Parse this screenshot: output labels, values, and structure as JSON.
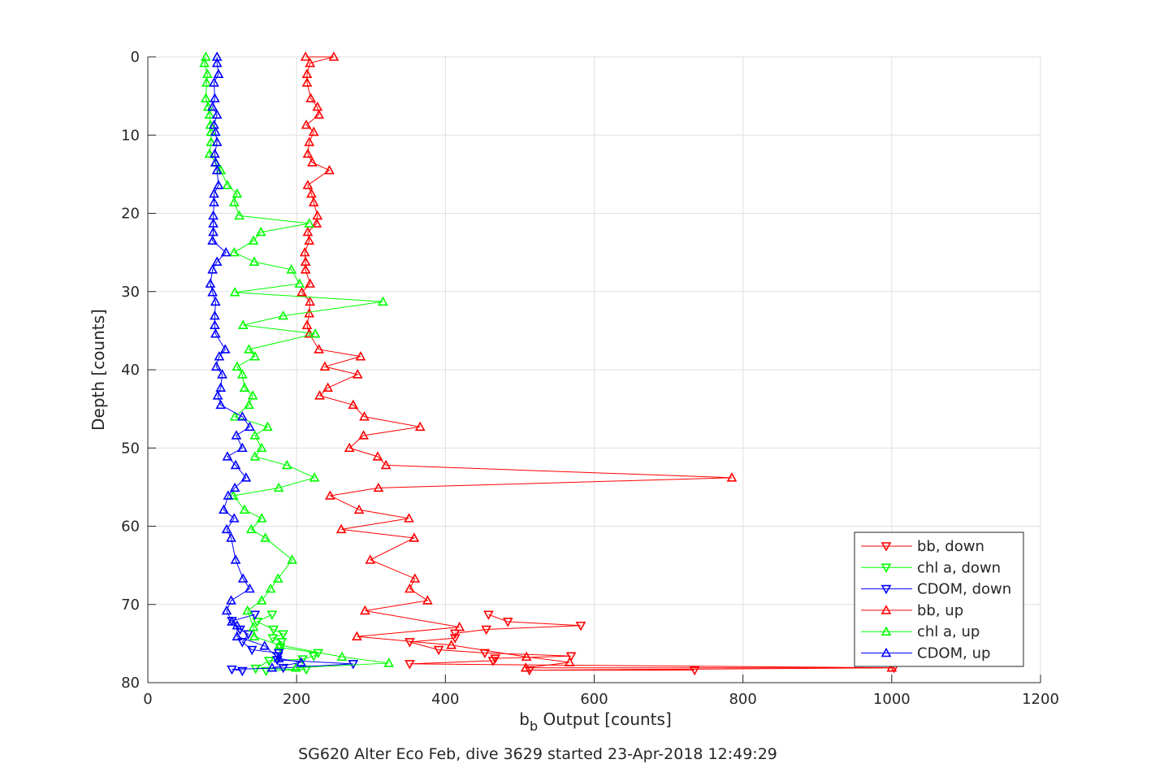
{
  "chart_data": {
    "type": "line",
    "title": "",
    "xlabel_main": "b",
    "xlabel_sub": "b",
    "xlabel_rest": " Output [counts]",
    "ylabel": "Depth [counts]",
    "caption": "SG620 Alter Eco Feb, dive 3629 started 23-Apr-2018 12:49:29",
    "xlim": [
      0,
      1200
    ],
    "ylim": [
      0,
      80
    ],
    "y_reversed": true,
    "grid": true,
    "xticks": [
      "0",
      "200",
      "400",
      "600",
      "800",
      "1000",
      "1200"
    ],
    "xtick_values": [
      0,
      200,
      400,
      600,
      800,
      1000,
      1200
    ],
    "yticks": [
      "0",
      "10",
      "20",
      "30",
      "40",
      "50",
      "60",
      "70",
      "80"
    ],
    "ytick_values": [
      0,
      10,
      20,
      30,
      40,
      50,
      60,
      70,
      80
    ],
    "legend_placement": "bottom-right",
    "series": [
      {
        "name": "bb, down",
        "color": "#ff0000",
        "marker": "down",
        "x": [
          458,
          484,
          582,
          455,
          413,
          413,
          352,
          391,
          453,
          569,
          467,
          464,
          352,
          1003,
          513,
          735
        ],
        "y": [
          71.3,
          72.2,
          72.7,
          73.2,
          73.7,
          74.3,
          74.8,
          75.8,
          76.2,
          76.6,
          76.9,
          77.2,
          77.6,
          78.1,
          78.4,
          78.4
        ]
      },
      {
        "name": "chl a, down",
        "color": "#00ff00",
        "marker": "down",
        "x": [
          167,
          147,
          169,
          182,
          168,
          180,
          178,
          229,
          223,
          208,
          163,
          145,
          213,
          159
        ],
        "y": [
          71.3,
          72.2,
          73.2,
          73.8,
          74.3,
          74.8,
          75.5,
          76.2,
          76.6,
          77.0,
          77.2,
          78.2,
          78.3,
          78.5
        ]
      },
      {
        "name": "CDOM, down",
        "color": "#0000ff",
        "marker": "down",
        "x": [
          144,
          113,
          124,
          135,
          127,
          140,
          176,
          175,
          174,
          276,
          182,
          113,
          127
        ],
        "y": [
          71.3,
          72.1,
          73.2,
          73.8,
          74.8,
          75.8,
          76.2,
          76.6,
          77.1,
          77.6,
          78.1,
          78.3,
          78.5
        ]
      },
      {
        "name": "bb, up",
        "color": "#ff0000",
        "marker": "up",
        "x": [
          212,
          250,
          218,
          214,
          214,
          219,
          228,
          230,
          213,
          223,
          217,
          215,
          221,
          244,
          215,
          220,
          223,
          228,
          227,
          215,
          217,
          211,
          212,
          212,
          218,
          207,
          218,
          217,
          214,
          217,
          230,
          286,
          238,
          282,
          242,
          231,
          276,
          291,
          366,
          290,
          271,
          309,
          320,
          785,
          310,
          245,
          284,
          351,
          260,
          358,
          299,
          359,
          352,
          376,
          292,
          419,
          281,
          408,
          509,
          567,
          508,
          1000
        ],
        "y": [
          0,
          0,
          0.8,
          2.2,
          3.3,
          5.3,
          6.4,
          7.4,
          8.7,
          9.6,
          10.9,
          12.4,
          13.5,
          14.5,
          16.4,
          17.5,
          18.6,
          20.3,
          21.3,
          22.4,
          23.5,
          25,
          26.2,
          27.2,
          29,
          30.1,
          31.3,
          32.8,
          34.3,
          35.4,
          37.4,
          38.3,
          39.6,
          40.6,
          42.3,
          43.3,
          44.5,
          46,
          47.3,
          48.4,
          50,
          51.1,
          52.2,
          53.8,
          55.1,
          56.1,
          57.9,
          59,
          60.4,
          61.5,
          64.3,
          66.7,
          68,
          69.5,
          70.8,
          72.9,
          74.1,
          75.2,
          76.7,
          77.4,
          78.1,
          78.1
        ]
      },
      {
        "name": "chl a, up",
        "color": "#00ff00",
        "marker": "up",
        "x": [
          78,
          76,
          80,
          79,
          78,
          81,
          83,
          84,
          85,
          85,
          83,
          91,
          98,
          107,
          120,
          116,
          123,
          217,
          152,
          142,
          116,
          143,
          193,
          204,
          117,
          316,
          182,
          128,
          225,
          136,
          144,
          120,
          127,
          130,
          141,
          136,
          117,
          161,
          144,
          153,
          144,
          187,
          224,
          176,
          115,
          130,
          153,
          139,
          158,
          194,
          175,
          165,
          153,
          134,
          142,
          143,
          177,
          261,
          324,
          199
        ],
        "y": [
          0,
          0.8,
          2.2,
          3.3,
          5.3,
          6.4,
          7.4,
          8.7,
          9.6,
          10.9,
          12.4,
          13.5,
          14.5,
          16.4,
          17.5,
          18.6,
          20.3,
          21.3,
          22.4,
          23.5,
          25,
          26.2,
          27.2,
          29,
          30.1,
          31.3,
          33.1,
          34.3,
          35.4,
          37.4,
          38.3,
          39.6,
          40.6,
          42.3,
          43.3,
          44.5,
          46,
          47.3,
          48.4,
          50,
          51.1,
          52.2,
          53.8,
          55.1,
          56.1,
          57.9,
          59,
          60.4,
          61.5,
          64.3,
          66.7,
          68,
          69.5,
          70.8,
          72.9,
          74.1,
          75.2,
          76.7,
          77.5,
          78.1
        ]
      },
      {
        "name": "CDOM, up",
        "color": "#0000ff",
        "marker": "up",
        "x": [
          93,
          93,
          95,
          89,
          90,
          87,
          93,
          89,
          91,
          93,
          90,
          91,
          93,
          95,
          89,
          89,
          88,
          88,
          88,
          87,
          105,
          93,
          87,
          84,
          87,
          91,
          90,
          90,
          91,
          104,
          96,
          92,
          100,
          98,
          94,
          98,
          127,
          137,
          119,
          127,
          107,
          118,
          132,
          117,
          108,
          102,
          116,
          106,
          112,
          118,
          128,
          137,
          112,
          106,
          113,
          120,
          120,
          157,
          176,
          206,
          167
        ],
        "y": [
          0,
          0.8,
          2.2,
          3.3,
          5.3,
          6.4,
          7.4,
          8.7,
          9.6,
          10.9,
          12.4,
          13.5,
          14.5,
          16.4,
          17.5,
          18.6,
          20.3,
          21.3,
          22.4,
          23.5,
          25,
          26.2,
          27.2,
          29,
          30.1,
          31.3,
          33.1,
          34.3,
          35.4,
          37.4,
          38.3,
          39.6,
          40.6,
          42.3,
          43.3,
          44.5,
          46,
          47.3,
          48.4,
          50,
          51.1,
          52.2,
          53.8,
          55.1,
          56.1,
          57.9,
          59,
          60.4,
          61.5,
          64.3,
          66.7,
          68,
          69.5,
          70.8,
          72.2,
          72.7,
          74.1,
          75.3,
          76.9,
          77.4,
          78.1
        ]
      }
    ]
  }
}
